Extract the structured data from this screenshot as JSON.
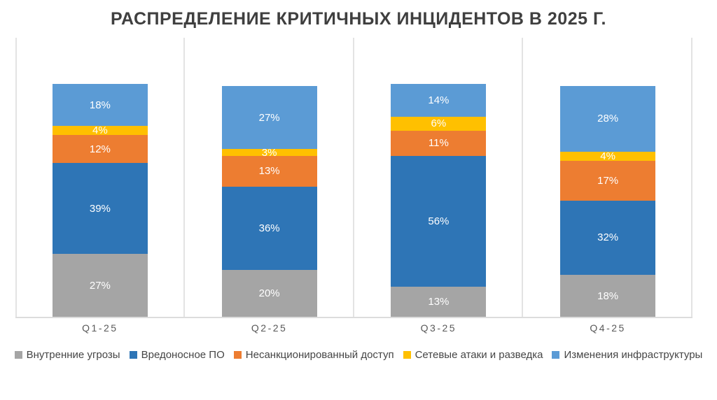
{
  "title": "РАСПРЕДЕЛЕНИЕ КРИТИЧНЫХ ИНЦИДЕНТОВ В 2025 Г.",
  "chart_data": {
    "type": "bar",
    "stacked": true,
    "unit": "%",
    "title": "РАСПРЕДЕЛЕНИЕ КРИТИЧНЫХ ИНЦИДЕНТОВ В 2025 Г.",
    "categories": [
      "Q1-25",
      "Q2-25",
      "Q3-25",
      "Q4-25"
    ],
    "series": [
      {
        "name": "Внутренние угрозы",
        "color": "#A5A5A5",
        "values": [
          27,
          20,
          13,
          18
        ]
      },
      {
        "name": "Вредоносное ПО",
        "color": "#2E75B6",
        "values": [
          39,
          36,
          56,
          32
        ]
      },
      {
        "name": "Несанкционированный доступ",
        "color": "#ED7D31",
        "values": [
          12,
          13,
          11,
          17
        ]
      },
      {
        "name": "Сетевые атаки и разведка",
        "color": "#FFC000",
        "values": [
          4,
          3,
          6,
          4
        ]
      },
      {
        "name": "Изменения инфраструктуры",
        "color": "#5B9BD5",
        "values": [
          18,
          27,
          14,
          28
        ]
      }
    ],
    "data_labels": "percent-inside-white",
    "legend_position": "bottom",
    "xlabel": "",
    "ylabel": "",
    "ylim": [
      0,
      120
    ],
    "grid": "vertical-category-boundaries-and-bottom-axis",
    "grid_color": "#E0E0E0"
  }
}
